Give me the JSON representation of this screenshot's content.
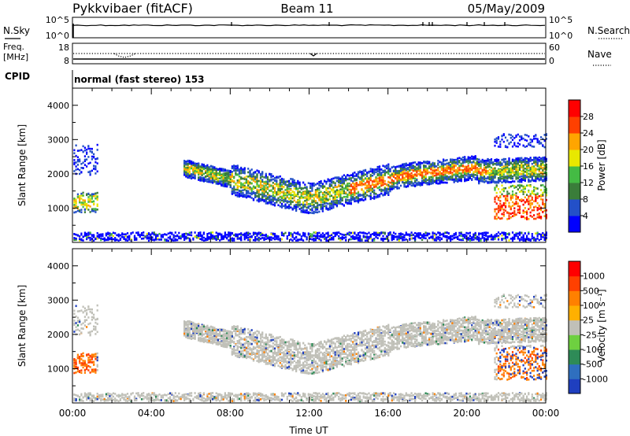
{
  "header": {
    "station": "Pykkvibaer (fitACF)",
    "beam": "Beam 11",
    "date": "05/May/2009"
  },
  "top_panel": {
    "left_label": "N.Sky",
    "left_tick_top": "10^5",
    "left_tick_bottom": "10^0",
    "right_label": "N.Search",
    "right_tick_top": "10^5",
    "right_tick_bottom": "10^0"
  },
  "freq_panel": {
    "left_label_1": "Freq.",
    "left_label_2": "[MHz]",
    "left_tick_top": "18",
    "left_tick_bottom": "8",
    "right_label": "Nave",
    "right_tick_top": "60",
    "right_tick_bottom": "0"
  },
  "cpid": {
    "label": "CPID",
    "value": "normal (fast stereo) 153"
  },
  "chart_data": [
    {
      "type": "heatmap",
      "parameter": "Power",
      "ylabel": "Slant Range [km]",
      "xlabel": "",
      "x_range": [
        "00:00",
        "00:00 (+1 day)"
      ],
      "ylim": [
        0,
        4500
      ],
      "yticks": [
        "1000",
        "2000",
        "3000",
        "4000"
      ],
      "xticks": [
        "00:00",
        "04:00",
        "08:00",
        "12:00",
        "16:00",
        "20:00",
        "00:00"
      ],
      "colorbar": {
        "label": "Power [dB]",
        "ticks": [
          "4",
          "8",
          "12",
          "16",
          "20",
          "24",
          "28"
        ],
        "colors": [
          "#0000ff",
          "#2350c8",
          "#3a7d3a",
          "#44bb44",
          "#e8e800",
          "#ffa500",
          "#ff4000",
          "#ff0000"
        ]
      }
    },
    {
      "type": "heatmap",
      "parameter": "Velocity",
      "ylabel": "Slant Range [km]",
      "xlabel": "Time UT",
      "x_range": [
        "00:00",
        "00:00 (+1 day)"
      ],
      "ylim": [
        0,
        4500
      ],
      "yticks": [
        "1000",
        "2000",
        "3000",
        "4000"
      ],
      "xticks": [
        "00:00",
        "04:00",
        "08:00",
        "12:00",
        "16:00",
        "20:00",
        "00:00"
      ],
      "colorbar": {
        "label": "Velocity [m s⁻¹]",
        "ticks": [
          "1000",
          "500",
          "100",
          "25",
          "-25",
          "-100",
          "-500",
          "-1000"
        ],
        "colors": [
          "#1f3fbf",
          "#2f6fbf",
          "#2e8b57",
          "#6ed040",
          "#c0c0b8",
          "#ffb000",
          "#ff8000",
          "#ff4000",
          "#ff0000"
        ]
      }
    }
  ]
}
